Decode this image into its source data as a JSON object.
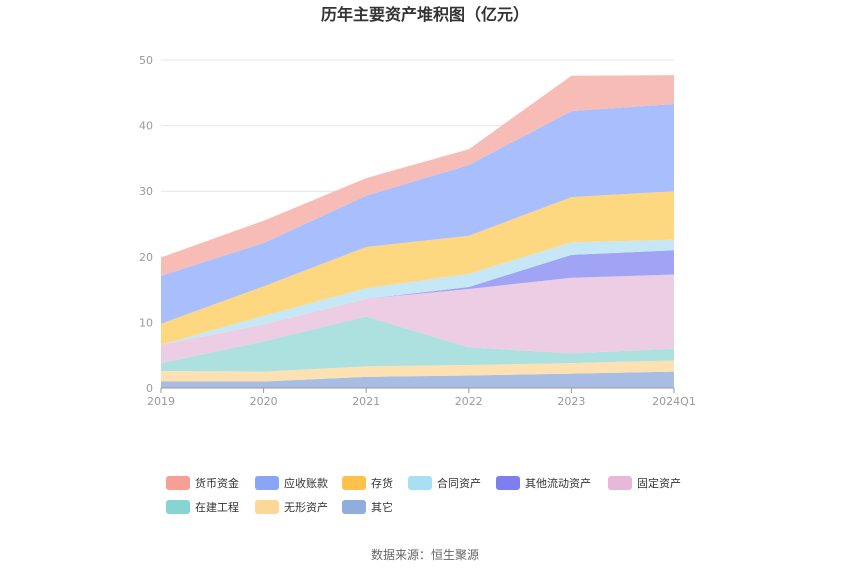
{
  "chart_data": {
    "type": "area",
    "title": "历年主要资产堆积图（亿元）",
    "categories": [
      "2019",
      "2020",
      "2021",
      "2022",
      "2023",
      "2024Q1"
    ],
    "ylim": [
      0,
      50
    ],
    "yticks": [
      0,
      10,
      20,
      30,
      40,
      50
    ],
    "grid": true,
    "legend_position": "bottom",
    "series": [
      {
        "name": "其它",
        "color": "#a7bde3",
        "values": [
          1.0,
          1.0,
          1.7,
          1.9,
          2.2,
          2.5
        ]
      },
      {
        "name": "无形资产",
        "color": "#fde1b2",
        "values": [
          1.6,
          1.5,
          1.6,
          1.6,
          1.6,
          1.7
        ]
      },
      {
        "name": "在建工程",
        "color": "#ace1e0",
        "values": [
          1.2,
          4.6,
          7.6,
          2.7,
          1.5,
          1.8
        ]
      },
      {
        "name": "固定资产",
        "color": "#eccde3",
        "values": [
          2.8,
          2.6,
          2.7,
          8.9,
          11.5,
          11.3
        ]
      },
      {
        "name": "其他流动资产",
        "color": "#a1a3f5",
        "values": [
          0.0,
          0.0,
          0.0,
          0.3,
          3.5,
          3.7
        ]
      },
      {
        "name": "合同资产",
        "color": "#c6e7f5",
        "values": [
          0.0,
          1.3,
          1.6,
          2.0,
          1.9,
          1.6
        ]
      },
      {
        "name": "存货",
        "color": "#fed880",
        "values": [
          3.2,
          4.5,
          6.3,
          5.8,
          6.9,
          7.4
        ]
      },
      {
        "name": "应收账款",
        "color": "#a9befc",
        "values": [
          7.3,
          6.6,
          7.8,
          10.8,
          13.1,
          13.3
        ]
      },
      {
        "name": "货币资金",
        "color": "#f8bcb6",
        "values": [
          2.8,
          3.4,
          2.7,
          2.4,
          5.4,
          4.4
        ]
      }
    ]
  },
  "legend": [
    {
      "label": "货币资金",
      "color": "#f79f97"
    },
    {
      "label": "应收账款",
      "color": "#88a5f8"
    },
    {
      "label": "存货",
      "color": "#fec24b"
    },
    {
      "label": "合同资产",
      "color": "#a8dff5"
    },
    {
      "label": "其他流动资产",
      "color": "#7d7ff0"
    },
    {
      "label": "固定资产",
      "color": "#e8b8da"
    },
    {
      "label": "在建工程",
      "color": "#86d5d3"
    },
    {
      "label": "无形资产",
      "color": "#fdd798"
    },
    {
      "label": "其它",
      "color": "#8faedc"
    }
  ],
  "footer": {
    "source": "数据来源：恒生聚源"
  }
}
